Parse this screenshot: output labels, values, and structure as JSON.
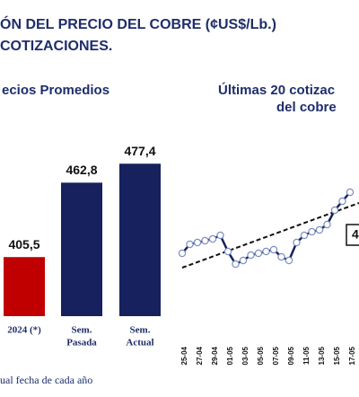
{
  "chart_data": [
    {
      "type": "page",
      "title": "ÓN DEL PRECIO DEL COBRE (¢US$/Lb.)",
      "subtitle": "COTIZACIONES.",
      "footnote": "ual fecha de cada año"
    },
    {
      "type": "bar",
      "title": "ecios Promedios",
      "categories": [
        [
          "2024 (*)"
        ],
        [
          "Sem.",
          "Pasada"
        ],
        [
          "Sem.",
          "Actual"
        ]
      ],
      "values": [
        405.5,
        462.8,
        477.4
      ],
      "value_labels": [
        "405,5",
        "462,8",
        "477,4"
      ],
      "colors": [
        "#c00000",
        "#16215e",
        "#16215e"
      ],
      "ylim": [
        360,
        480
      ]
    },
    {
      "type": "line",
      "title": [
        "Últimas 20 cotizac",
        "del cobre"
      ],
      "categories": [
        "25-04",
        null,
        "27-04",
        null,
        "29-04",
        null,
        "01-05",
        null,
        "03-05",
        null,
        "05-05",
        null,
        "07-05",
        null,
        "09-05",
        null,
        "11-05",
        null,
        "13-05",
        null,
        "15-05",
        null,
        "17-05"
      ],
      "values": [
        444,
        449,
        450,
        451,
        452,
        454,
        445,
        438,
        440,
        443,
        444,
        445,
        446,
        442,
        440,
        450,
        454,
        456,
        457,
        460,
        468,
        473,
        478
      ],
      "color": "#16215e",
      "ylim": [
        400,
        500
      ],
      "annotation": "4"
    }
  ]
}
